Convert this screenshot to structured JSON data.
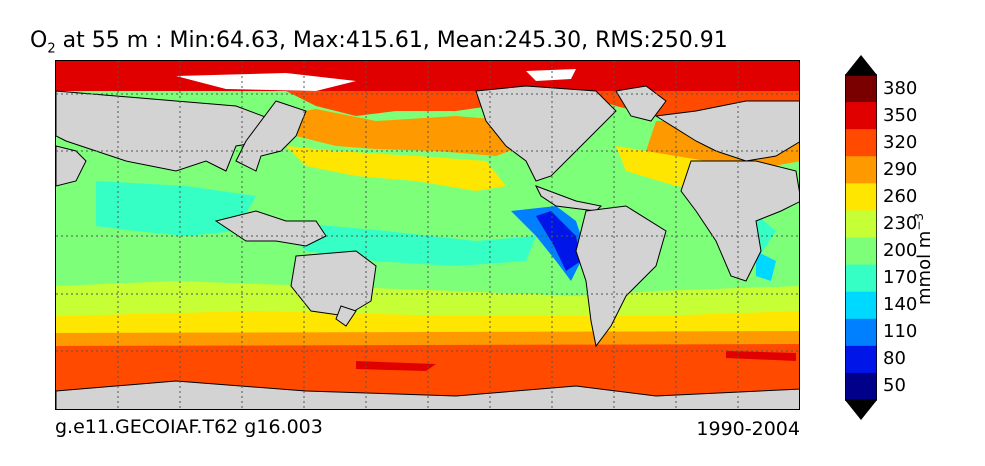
{
  "title": {
    "species": "O",
    "subscript": "2",
    "text": " at 55 m : Min:64.63, Max:415.61, Mean:245.30, RMS:250.91"
  },
  "footer": {
    "case": "g.e11.GECOIAF.T62 g16.003",
    "years": "1990-2004"
  },
  "colorbar": {
    "unit_main": "mmol m",
    "unit_exp": "−3",
    "ticks": [
      "380",
      "350",
      "320",
      "290",
      "260",
      "230",
      "200",
      "170",
      "140",
      "110",
      "80",
      "50"
    ],
    "colors": [
      "#7a0000",
      "#e00000",
      "#ff4a00",
      "#ff9900",
      "#ffe600",
      "#c6ff36",
      "#7dff7a",
      "#36ffc6",
      "#00d9ff",
      "#0080ff",
      "#0016e8",
      "#00008a"
    ],
    "extend_max_color": "#000000",
    "extend_min_color": "#000000"
  },
  "map": {
    "land_color": "#d3d3d3",
    "ice_color": "#ffffff",
    "grid": true
  }
}
